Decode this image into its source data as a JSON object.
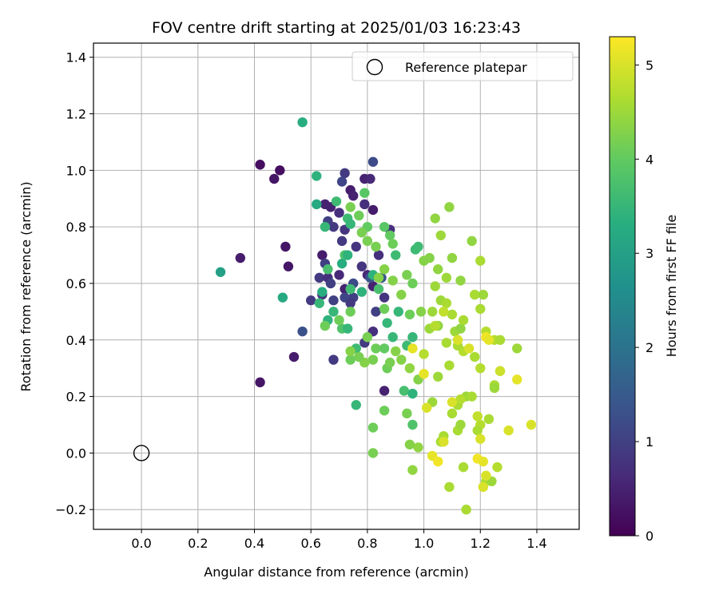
{
  "chart_data": {
    "type": "scatter",
    "title": "FOV centre drift starting at 2025/01/03 16:23:43",
    "xlabel": "Angular distance from reference (arcmin)",
    "ylabel": "Rotation from reference (arcmin)",
    "xlim": [
      -0.17,
      1.55
    ],
    "ylim": [
      -0.27,
      1.45
    ],
    "xticks": [
      0.0,
      0.2,
      0.4,
      0.6,
      0.8,
      1.0,
      1.2,
      1.4
    ],
    "xtick_labels": [
      "0.0",
      "0.2",
      "0.4",
      "0.6",
      "0.8",
      "1.0",
      "1.2",
      "1.4"
    ],
    "yticks": [
      -0.2,
      0.0,
      0.2,
      0.4,
      0.6,
      0.8,
      1.0,
      1.2,
      1.4
    ],
    "ytick_labels": [
      "−0.2",
      "0.0",
      "0.2",
      "0.4",
      "0.6",
      "0.8",
      "1.0",
      "1.2",
      "1.4"
    ],
    "grid": true,
    "legend": {
      "position": "upper-right",
      "label": "Reference platepar"
    },
    "reference_point": {
      "x": 0.0,
      "y": 0.0
    },
    "colorbar": {
      "label": "Hours from first FF file",
      "colormap": "viridis",
      "range": [
        0,
        5.3
      ],
      "ticks": [
        0,
        1,
        2,
        3,
        4,
        5
      ],
      "tick_labels": [
        "0",
        "1",
        "2",
        "3",
        "4",
        "5"
      ]
    },
    "points": [
      {
        "x": 0.42,
        "y": 1.02,
        "t": 0.2
      },
      {
        "x": 0.47,
        "y": 0.97,
        "t": 0.3
      },
      {
        "x": 0.49,
        "y": 1.0,
        "t": 0.2
      },
      {
        "x": 0.35,
        "y": 0.69,
        "t": 0.4
      },
      {
        "x": 0.51,
        "y": 0.73,
        "t": 0.3
      },
      {
        "x": 0.52,
        "y": 0.66,
        "t": 0.3
      },
      {
        "x": 0.54,
        "y": 0.34,
        "t": 0.4
      },
      {
        "x": 0.42,
        "y": 0.25,
        "t": 0.3
      },
      {
        "x": 0.64,
        "y": 0.7,
        "t": 0.4
      },
      {
        "x": 0.65,
        "y": 0.88,
        "t": 0.5
      },
      {
        "x": 0.67,
        "y": 0.87,
        "t": 0.5
      },
      {
        "x": 0.7,
        "y": 0.85,
        "t": 0.7
      },
      {
        "x": 0.74,
        "y": 0.93,
        "t": 0.4
      },
      {
        "x": 0.75,
        "y": 0.91,
        "t": 0.5
      },
      {
        "x": 0.79,
        "y": 0.97,
        "t": 0.5
      },
      {
        "x": 0.81,
        "y": 0.97,
        "t": 0.6
      },
      {
        "x": 0.72,
        "y": 0.99,
        "t": 0.9
      },
      {
        "x": 0.71,
        "y": 0.96,
        "t": 1.1
      },
      {
        "x": 0.82,
        "y": 1.03,
        "t": 1.2
      },
      {
        "x": 0.79,
        "y": 0.88,
        "t": 0.7
      },
      {
        "x": 0.82,
        "y": 0.86,
        "t": 0.4
      },
      {
        "x": 0.66,
        "y": 0.82,
        "t": 1.0
      },
      {
        "x": 0.68,
        "y": 0.8,
        "t": 0.9
      },
      {
        "x": 0.72,
        "y": 0.79,
        "t": 0.8
      },
      {
        "x": 0.76,
        "y": 0.73,
        "t": 0.8
      },
      {
        "x": 0.71,
        "y": 0.75,
        "t": 0.9
      },
      {
        "x": 0.65,
        "y": 0.67,
        "t": 1.0
      },
      {
        "x": 0.63,
        "y": 0.62,
        "t": 0.9
      },
      {
        "x": 0.66,
        "y": 0.62,
        "t": 0.7
      },
      {
        "x": 0.67,
        "y": 0.6,
        "t": 1.0
      },
      {
        "x": 0.7,
        "y": 0.63,
        "t": 0.6
      },
      {
        "x": 0.72,
        "y": 0.58,
        "t": 0.5
      },
      {
        "x": 0.75,
        "y": 0.55,
        "t": 1.0
      },
      {
        "x": 0.78,
        "y": 0.66,
        "t": 0.8
      },
      {
        "x": 0.8,
        "y": 0.63,
        "t": 0.6
      },
      {
        "x": 0.82,
        "y": 0.59,
        "t": 0.5
      },
      {
        "x": 0.6,
        "y": 0.54,
        "t": 0.9
      },
      {
        "x": 0.64,
        "y": 0.56,
        "t": 0.8
      },
      {
        "x": 0.68,
        "y": 0.54,
        "t": 1.0
      },
      {
        "x": 0.72,
        "y": 0.55,
        "t": 1.1
      },
      {
        "x": 0.74,
        "y": 0.53,
        "t": 0.9
      },
      {
        "x": 0.83,
        "y": 0.5,
        "t": 1.0
      },
      {
        "x": 0.86,
        "y": 0.55,
        "t": 0.8
      },
      {
        "x": 0.84,
        "y": 0.7,
        "t": 0.7
      },
      {
        "x": 0.88,
        "y": 0.79,
        "t": 0.7
      },
      {
        "x": 0.57,
        "y": 0.43,
        "t": 1.3
      },
      {
        "x": 0.68,
        "y": 0.33,
        "t": 0.9
      },
      {
        "x": 0.79,
        "y": 0.39,
        "t": 0.9
      },
      {
        "x": 0.82,
        "y": 0.43,
        "t": 0.7
      },
      {
        "x": 0.86,
        "y": 0.22,
        "t": 0.5
      },
      {
        "x": 0.85,
        "y": 0.62,
        "t": 1.4
      },
      {
        "x": 0.75,
        "y": 0.6,
        "t": 1.2
      },
      {
        "x": 0.81,
        "y": 0.62,
        "t": 1.4
      },
      {
        "x": 0.28,
        "y": 0.64,
        "t": 3.0
      },
      {
        "x": 0.57,
        "y": 1.17,
        "t": 3.3
      },
      {
        "x": 0.62,
        "y": 0.98,
        "t": 3.4
      },
      {
        "x": 0.62,
        "y": 0.88,
        "t": 3.2
      },
      {
        "x": 0.5,
        "y": 0.55,
        "t": 3.2
      },
      {
        "x": 0.69,
        "y": 0.89,
        "t": 3.6
      },
      {
        "x": 0.65,
        "y": 0.8,
        "t": 3.5
      },
      {
        "x": 0.73,
        "y": 0.83,
        "t": 3.6
      },
      {
        "x": 0.74,
        "y": 0.81,
        "t": 3.5
      },
      {
        "x": 0.72,
        "y": 0.7,
        "t": 3.8
      },
      {
        "x": 0.73,
        "y": 0.7,
        "t": 3.4
      },
      {
        "x": 0.71,
        "y": 0.67,
        "t": 3.3
      },
      {
        "x": 0.66,
        "y": 0.65,
        "t": 3.7
      },
      {
        "x": 0.64,
        "y": 0.57,
        "t": 3.3
      },
      {
        "x": 0.63,
        "y": 0.53,
        "t": 3.5
      },
      {
        "x": 0.66,
        "y": 0.47,
        "t": 3.4
      },
      {
        "x": 0.68,
        "y": 0.5,
        "t": 3.5
      },
      {
        "x": 0.71,
        "y": 0.44,
        "t": 3.8
      },
      {
        "x": 0.73,
        "y": 0.44,
        "t": 3.5
      },
      {
        "x": 0.74,
        "y": 0.58,
        "t": 3.6
      },
      {
        "x": 0.78,
        "y": 0.57,
        "t": 3.4
      },
      {
        "x": 0.76,
        "y": 0.37,
        "t": 3.6
      },
      {
        "x": 0.76,
        "y": 0.17,
        "t": 3.5
      },
      {
        "x": 0.82,
        "y": 0.63,
        "t": 3.4
      },
      {
        "x": 0.84,
        "y": 0.58,
        "t": 3.7
      },
      {
        "x": 0.87,
        "y": 0.46,
        "t": 3.5
      },
      {
        "x": 0.89,
        "y": 0.41,
        "t": 3.5
      },
      {
        "x": 0.9,
        "y": 0.7,
        "t": 3.6
      },
      {
        "x": 0.93,
        "y": 0.22,
        "t": 3.7
      },
      {
        "x": 0.96,
        "y": 0.21,
        "t": 3.4
      },
      {
        "x": 0.96,
        "y": 0.41,
        "t": 3.5
      },
      {
        "x": 0.97,
        "y": 0.72,
        "t": 3.6
      },
      {
        "x": 0.98,
        "y": 0.73,
        "t": 3.6
      },
      {
        "x": 0.96,
        "y": 0.1,
        "t": 3.8
      },
      {
        "x": 0.94,
        "y": 0.38,
        "t": 3.6
      },
      {
        "x": 0.91,
        "y": 0.5,
        "t": 3.5
      },
      {
        "x": 0.79,
        "y": 0.92,
        "t": 3.9
      },
      {
        "x": 0.8,
        "y": 0.8,
        "t": 4.0
      },
      {
        "x": 0.86,
        "y": 0.8,
        "t": 3.9
      },
      {
        "x": 0.88,
        "y": 0.77,
        "t": 4.0
      },
      {
        "x": 0.77,
        "y": 0.84,
        "t": 4.1
      },
      {
        "x": 0.74,
        "y": 0.87,
        "t": 4.2
      },
      {
        "x": 0.78,
        "y": 0.78,
        "t": 4.2
      },
      {
        "x": 0.8,
        "y": 0.75,
        "t": 4.2
      },
      {
        "x": 0.83,
        "y": 0.73,
        "t": 4.2
      },
      {
        "x": 0.89,
        "y": 0.74,
        "t": 4.1
      },
      {
        "x": 0.86,
        "y": 0.65,
        "t": 4.3
      },
      {
        "x": 0.84,
        "y": 0.62,
        "t": 4.3
      },
      {
        "x": 0.65,
        "y": 0.45,
        "t": 4.1
      },
      {
        "x": 0.7,
        "y": 0.47,
        "t": 4.1
      },
      {
        "x": 0.74,
        "y": 0.5,
        "t": 4.1
      },
      {
        "x": 0.8,
        "y": 0.41,
        "t": 4.2
      },
      {
        "x": 0.83,
        "y": 0.37,
        "t": 4.1
      },
      {
        "x": 0.82,
        "y": 0.33,
        "t": 4.2
      },
      {
        "x": 0.79,
        "y": 0.32,
        "t": 4.3
      },
      {
        "x": 0.77,
        "y": 0.34,
        "t": 4.2
      },
      {
        "x": 0.74,
        "y": 0.33,
        "t": 4.1
      },
      {
        "x": 0.74,
        "y": 0.36,
        "t": 4.3
      },
      {
        "x": 0.86,
        "y": 0.37,
        "t": 4.0
      },
      {
        "x": 0.87,
        "y": 0.3,
        "t": 4.1
      },
      {
        "x": 0.88,
        "y": 0.32,
        "t": 4.2
      },
      {
        "x": 0.9,
        "y": 0.36,
        "t": 4.3
      },
      {
        "x": 0.92,
        "y": 0.33,
        "t": 4.3
      },
      {
        "x": 0.86,
        "y": 0.51,
        "t": 4.1
      },
      {
        "x": 0.89,
        "y": 0.61,
        "t": 4.3
      },
      {
        "x": 0.92,
        "y": 0.56,
        "t": 4.3
      },
      {
        "x": 0.94,
        "y": 0.63,
        "t": 4.2
      },
      {
        "x": 0.96,
        "y": 0.6,
        "t": 4.1
      },
      {
        "x": 0.95,
        "y": 0.49,
        "t": 4.1
      },
      {
        "x": 0.99,
        "y": 0.5,
        "t": 4.3
      },
      {
        "x": 0.95,
        "y": 0.3,
        "t": 4.4
      },
      {
        "x": 0.98,
        "y": 0.26,
        "t": 4.3
      },
      {
        "x": 0.94,
        "y": 0.14,
        "t": 4.2
      },
      {
        "x": 0.98,
        "y": 0.02,
        "t": 4.4
      },
      {
        "x": 0.95,
        "y": 0.03,
        "t": 4.3
      },
      {
        "x": 0.96,
        "y": -0.06,
        "t": 4.4
      },
      {
        "x": 0.82,
        "y": 0.09,
        "t": 4.1
      },
      {
        "x": 0.82,
        "y": -0.0,
        "t": 4.2
      },
      {
        "x": 0.86,
        "y": 0.15,
        "t": 4.1
      },
      {
        "x": 1.04,
        "y": 0.83,
        "t": 4.4
      },
      {
        "x": 1.09,
        "y": 0.87,
        "t": 4.4
      },
      {
        "x": 1.06,
        "y": 0.77,
        "t": 4.5
      },
      {
        "x": 1.02,
        "y": 0.69,
        "t": 4.3
      },
      {
        "x": 1.0,
        "y": 0.68,
        "t": 4.3
      },
      {
        "x": 1.05,
        "y": 0.65,
        "t": 4.4
      },
      {
        "x": 1.08,
        "y": 0.62,
        "t": 4.5
      },
      {
        "x": 1.1,
        "y": 0.69,
        "t": 4.4
      },
      {
        "x": 1.13,
        "y": 0.61,
        "t": 4.4
      },
      {
        "x": 1.17,
        "y": 0.75,
        "t": 4.4
      },
      {
        "x": 1.2,
        "y": 0.68,
        "t": 4.6
      },
      {
        "x": 1.04,
        "y": 0.59,
        "t": 4.5
      },
      {
        "x": 1.06,
        "y": 0.54,
        "t": 4.5
      },
      {
        "x": 1.08,
        "y": 0.53,
        "t": 4.6
      },
      {
        "x": 1.1,
        "y": 0.49,
        "t": 4.6
      },
      {
        "x": 1.03,
        "y": 0.5,
        "t": 4.5
      },
      {
        "x": 1.05,
        "y": 0.45,
        "t": 4.4
      },
      {
        "x": 1.02,
        "y": 0.44,
        "t": 4.5
      },
      {
        "x": 1.08,
        "y": 0.39,
        "t": 4.6
      },
      {
        "x": 1.11,
        "y": 0.43,
        "t": 4.5
      },
      {
        "x": 1.13,
        "y": 0.44,
        "t": 4.4
      },
      {
        "x": 1.14,
        "y": 0.47,
        "t": 4.6
      },
      {
        "x": 1.18,
        "y": 0.56,
        "t": 4.6
      },
      {
        "x": 1.21,
        "y": 0.56,
        "t": 4.5
      },
      {
        "x": 1.2,
        "y": 0.51,
        "t": 4.6
      },
      {
        "x": 1.22,
        "y": 0.43,
        "t": 4.7
      },
      {
        "x": 1.25,
        "y": 0.4,
        "t": 4.7
      },
      {
        "x": 1.27,
        "y": 0.4,
        "t": 4.6
      },
      {
        "x": 1.33,
        "y": 0.37,
        "t": 4.5
      },
      {
        "x": 1.18,
        "y": 0.34,
        "t": 4.6
      },
      {
        "x": 1.14,
        "y": 0.36,
        "t": 4.7
      },
      {
        "x": 1.12,
        "y": 0.38,
        "t": 4.6
      },
      {
        "x": 1.09,
        "y": 0.31,
        "t": 4.6
      },
      {
        "x": 1.05,
        "y": 0.27,
        "t": 4.5
      },
      {
        "x": 1.03,
        "y": 0.18,
        "t": 4.5
      },
      {
        "x": 1.0,
        "y": 0.35,
        "t": 4.7
      },
      {
        "x": 1.12,
        "y": 0.17,
        "t": 4.6
      },
      {
        "x": 1.15,
        "y": 0.2,
        "t": 4.5
      },
      {
        "x": 1.17,
        "y": 0.2,
        "t": 4.6
      },
      {
        "x": 1.13,
        "y": 0.19,
        "t": 4.7
      },
      {
        "x": 1.1,
        "y": 0.14,
        "t": 4.6
      },
      {
        "x": 1.12,
        "y": 0.08,
        "t": 4.6
      },
      {
        "x": 1.13,
        "y": 0.1,
        "t": 4.5
      },
      {
        "x": 1.07,
        "y": 0.06,
        "t": 4.6
      },
      {
        "x": 1.06,
        "y": 0.04,
        "t": 4.6
      },
      {
        "x": 1.2,
        "y": 0.3,
        "t": 4.7
      },
      {
        "x": 1.23,
        "y": 0.12,
        "t": 4.6
      },
      {
        "x": 1.25,
        "y": 0.24,
        "t": 4.6
      },
      {
        "x": 1.25,
        "y": 0.23,
        "t": 4.5
      },
      {
        "x": 1.27,
        "y": 0.29,
        "t": 4.7
      },
      {
        "x": 1.2,
        "y": 0.1,
        "t": 4.7
      },
      {
        "x": 1.19,
        "y": 0.08,
        "t": 4.6
      },
      {
        "x": 1.26,
        "y": -0.05,
        "t": 4.7
      },
      {
        "x": 1.22,
        "y": -0.1,
        "t": 4.6
      },
      {
        "x": 1.24,
        "y": -0.1,
        "t": 4.5
      },
      {
        "x": 1.14,
        "y": -0.05,
        "t": 4.6
      },
      {
        "x": 1.09,
        "y": -0.12,
        "t": 4.6
      },
      {
        "x": 1.15,
        "y": -0.2,
        "t": 4.6
      },
      {
        "x": 1.19,
        "y": 0.13,
        "t": 4.8
      },
      {
        "x": 1.04,
        "y": 0.45,
        "t": 4.7
      },
      {
        "x": 1.07,
        "y": 0.5,
        "t": 4.8
      },
      {
        "x": 0.96,
        "y": 0.37,
        "t": 5.1
      },
      {
        "x": 1.0,
        "y": 0.28,
        "t": 5.1
      },
      {
        "x": 1.01,
        "y": 0.16,
        "t": 5.0
      },
      {
        "x": 1.03,
        "y": -0.01,
        "t": 5.1
      },
      {
        "x": 1.05,
        "y": -0.03,
        "t": 5.2
      },
      {
        "x": 1.07,
        "y": 0.04,
        "t": 5.0
      },
      {
        "x": 1.1,
        "y": 0.18,
        "t": 5.0
      },
      {
        "x": 1.12,
        "y": 0.4,
        "t": 5.0
      },
      {
        "x": 1.16,
        "y": 0.37,
        "t": 5.0
      },
      {
        "x": 1.19,
        "y": -0.02,
        "t": 5.2
      },
      {
        "x": 1.21,
        "y": -0.03,
        "t": 5.1
      },
      {
        "x": 1.22,
        "y": -0.08,
        "t": 5.0
      },
      {
        "x": 1.21,
        "y": -0.12,
        "t": 5.0
      },
      {
        "x": 1.22,
        "y": 0.41,
        "t": 5.2
      },
      {
        "x": 1.23,
        "y": 0.4,
        "t": 5.1
      },
      {
        "x": 1.2,
        "y": 0.05,
        "t": 5.0
      },
      {
        "x": 1.27,
        "y": 0.29,
        "t": 4.9
      },
      {
        "x": 1.3,
        "y": 0.08,
        "t": 5.0
      },
      {
        "x": 1.33,
        "y": 0.26,
        "t": 5.1
      },
      {
        "x": 1.38,
        "y": 0.1,
        "t": 5.0
      }
    ]
  }
}
